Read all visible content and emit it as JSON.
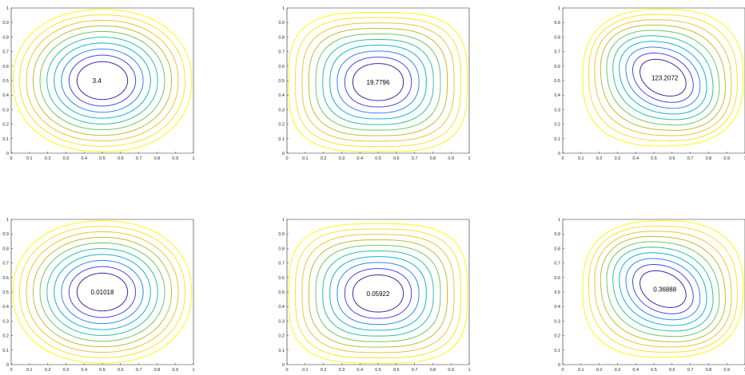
{
  "chart_data": [
    {
      "type": "contour",
      "title": "",
      "xlabel": "",
      "ylabel": "",
      "xlim": [
        0,
        1
      ],
      "ylim": [
        0,
        1
      ],
      "x_ticks": [
        "0",
        "0.1",
        "0.2",
        "0.3",
        "0.4",
        "0.5",
        "0.6",
        "0.7",
        "0.8",
        "0.9",
        "1"
      ],
      "y_ticks": [
        "0",
        "0.1",
        "0.2",
        "0.3",
        "0.4",
        "0.5",
        "0.6",
        "0.7",
        "0.8",
        "0.9",
        "1"
      ],
      "center": [
        0.5,
        0.5
      ],
      "levels": 10,
      "shape_exponent": 2.2,
      "skew": 0,
      "label": "3.4",
      "label_pos": [
        0.47,
        0.5
      ],
      "grid": false
    },
    {
      "type": "contour",
      "title": "",
      "xlabel": "",
      "ylabel": "",
      "xlim": [
        0,
        1
      ],
      "ylim": [
        0,
        1
      ],
      "x_ticks": [
        "0",
        "0.1",
        "0.2",
        "0.3",
        "0.4",
        "0.5",
        "0.6",
        "0.7",
        "0.8",
        "0.9",
        "1"
      ],
      "y_ticks": [
        "0",
        "0.1",
        "0.2",
        "0.3",
        "0.4",
        "0.5",
        "0.6",
        "0.7",
        "0.8",
        "0.9",
        "1"
      ],
      "center": [
        0.5,
        0.49
      ],
      "levels": 10,
      "shape_exponent": 3.2,
      "skew": 0,
      "label": "19.7796",
      "label_pos": [
        0.5,
        0.49
      ],
      "grid": false
    },
    {
      "type": "contour",
      "title": "",
      "xlabel": "",
      "ylabel": "",
      "xlim": [
        0,
        1
      ],
      "ylim": [
        0,
        1
      ],
      "x_ticks": [
        "0",
        "0.1",
        "0.2",
        "0.3",
        "0.4",
        "0.5",
        "0.6",
        "0.7",
        "0.8",
        "0.9",
        "1"
      ],
      "y_ticks": [
        "0",
        "0.1",
        "0.2",
        "0.3",
        "0.4",
        "0.5",
        "0.6",
        "0.7",
        "0.8",
        "0.9",
        "1"
      ],
      "center": [
        0.55,
        0.52
      ],
      "levels": 10,
      "shape_exponent": 2.6,
      "skew": 0.35,
      "label": "123.2072",
      "label_pos": [
        0.56,
        0.52
      ],
      "grid": false
    },
    {
      "type": "contour",
      "title": "",
      "xlabel": "",
      "ylabel": "",
      "xlim": [
        0,
        1
      ],
      "ylim": [
        0,
        1
      ],
      "x_ticks": [
        "0",
        "0.1",
        "0.2",
        "0.3",
        "0.4",
        "0.5",
        "0.6",
        "0.7",
        "0.8",
        "0.9",
        "1"
      ],
      "y_ticks": [
        "0",
        "0.1",
        "0.2",
        "0.3",
        "0.4",
        "0.5",
        "0.6",
        "0.7",
        "0.8",
        "0.9",
        "1"
      ],
      "center": [
        0.5,
        0.5
      ],
      "levels": 10,
      "shape_exponent": 2.2,
      "skew": 0,
      "label": "0.01018",
      "label_pos": [
        0.5,
        0.5
      ],
      "grid": false
    },
    {
      "type": "contour",
      "title": "",
      "xlabel": "",
      "ylabel": "",
      "xlim": [
        0,
        1
      ],
      "ylim": [
        0,
        1
      ],
      "x_ticks": [
        "0",
        "0.1",
        "0.2",
        "0.3",
        "0.4",
        "0.5",
        "0.6",
        "0.7",
        "0.8",
        "0.9",
        "1"
      ],
      "y_ticks": [
        "0",
        "0.1",
        "0.2",
        "0.3",
        "0.4",
        "0.5",
        "0.6",
        "0.7",
        "0.8",
        "0.9",
        "1"
      ],
      "center": [
        0.5,
        0.49
      ],
      "levels": 10,
      "shape_exponent": 3.2,
      "skew": 0,
      "label": "0.05922",
      "label_pos": [
        0.5,
        0.49
      ],
      "grid": false
    },
    {
      "type": "contour",
      "title": "",
      "xlabel": "",
      "ylabel": "",
      "xlim": [
        0,
        1
      ],
      "ylim": [
        0,
        1
      ],
      "x_ticks": [
        "0",
        "0.1",
        "0.2",
        "0.3",
        "0.4",
        "0.5",
        "0.6",
        "0.7",
        "0.8",
        "0.9",
        "1"
      ],
      "y_ticks": [
        "0",
        "0.1",
        "0.2",
        "0.3",
        "0.4",
        "0.5",
        "0.6",
        "0.7",
        "0.8",
        "0.9",
        "1"
      ],
      "center": [
        0.55,
        0.52
      ],
      "levels": 10,
      "shape_exponent": 2.6,
      "skew": 0.35,
      "label": "0.36888",
      "label_pos": [
        0.56,
        0.52
      ],
      "grid": false
    }
  ],
  "colormap": [
    "#3e26a8",
    "#4743f7",
    "#2e87f7",
    "#12b1d7",
    "#2bc0a0",
    "#6fc75e",
    "#c0bc2f",
    "#f1c331",
    "#f9e22c",
    "#f9fb0e"
  ]
}
